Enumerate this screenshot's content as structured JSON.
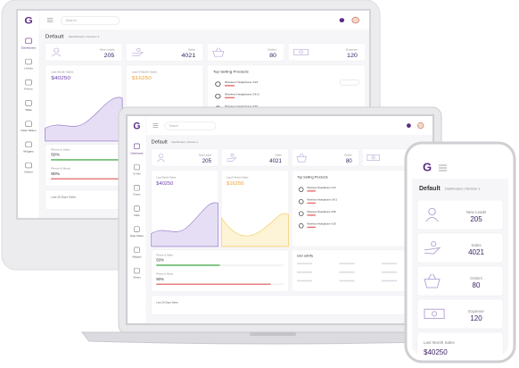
{
  "brand": "G",
  "search": "Search",
  "page_title": "Default",
  "breadcrumb": "Dashboard | Version 1",
  "sidebar": [
    "Dashboard",
    "UI Kits",
    "Forms",
    "Table",
    "Data Tables",
    "Widgets",
    "Others"
  ],
  "stats": [
    {
      "label": "New Leads",
      "value": "205"
    },
    {
      "label": "Sales",
      "value": "4021"
    },
    {
      "label": "Orders",
      "value": "80"
    },
    {
      "label": "Expense",
      "value": "120"
    }
  ],
  "last_month_sales": {
    "label": "Last Month Sales",
    "value": "$40250"
  },
  "last_6_month_sales": {
    "label": "Last 6 Month Sales",
    "value": "$16250"
  },
  "top_selling": {
    "title": "Top Selling Products",
    "items": [
      "Wireless Headphone X13",
      "Wireless Headphone GK-2",
      "Wireless Headphone X36",
      "Wireless Headphone X19"
    ]
  },
  "progress": [
    {
      "label": "Phone & Sales",
      "value": "50%"
    },
    {
      "label": "Phone & Music",
      "value": "90%"
    }
  ],
  "user_activity": "User activity",
  "footer_card": "Last 20 Days Sales"
}
